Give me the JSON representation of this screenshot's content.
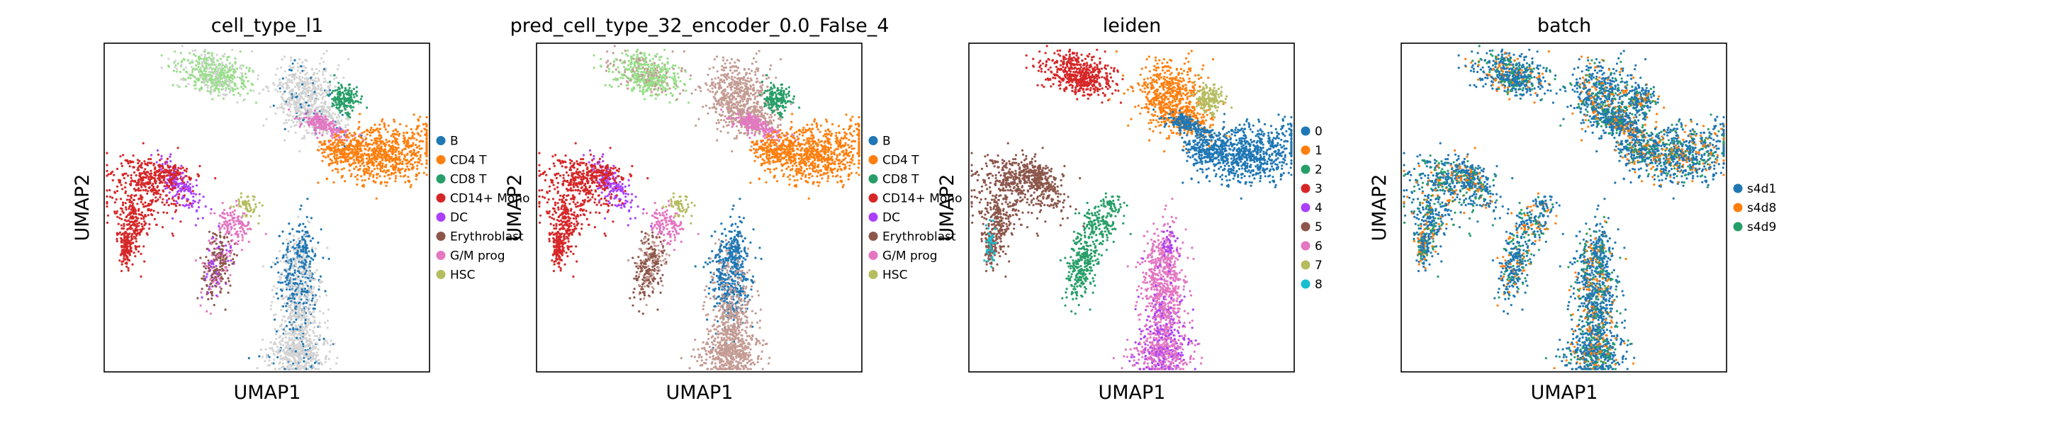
{
  "figure": {
    "background": "#ffffff"
  },
  "chart_data": [
    {
      "type": "scatter",
      "title": "cell_type_l1",
      "xlabel": "UMAP1",
      "ylabel": "UMAP2",
      "grid": false,
      "legend": "right",
      "unassigned_color": "#d3d3d3",
      "categories": [
        "B",
        "CD4 T",
        "CD8 T",
        "CD14+ Mono",
        "DC",
        "Erythroblast",
        "G/M prog",
        "HSC"
      ],
      "colors": [
        "#1f77b4",
        "#ff7f0e",
        "#279e68",
        "#d62728",
        "#aa40fc",
        "#8c564b",
        "#e377c2",
        "#b5bd61"
      ]
    },
    {
      "type": "scatter",
      "title": "pred_cell_type_32_encoder_0.0_False_4",
      "xlabel": "UMAP1",
      "ylabel": "UMAP2",
      "grid": false,
      "legend": "right",
      "categories": [
        "B",
        "CD4 T",
        "CD8 T",
        "CD14+ Mono",
        "DC",
        "Erythroblast",
        "G/M prog",
        "HSC"
      ],
      "colors": [
        "#1f77b4",
        "#ff7f0e",
        "#279e68",
        "#d62728",
        "#aa40fc",
        "#8c564b",
        "#e377c2",
        "#b5bd61"
      ]
    },
    {
      "type": "scatter",
      "title": "leiden",
      "xlabel": "UMAP1",
      "ylabel": "UMAP2",
      "grid": false,
      "legend": "right",
      "categories": [
        "0",
        "1",
        "2",
        "3",
        "4",
        "5",
        "6",
        "7",
        "8"
      ],
      "colors": [
        "#1f77b4",
        "#ff7f0e",
        "#279e68",
        "#d62728",
        "#aa40fc",
        "#8c564b",
        "#e377c2",
        "#b5bd61",
        "#17becf"
      ]
    },
    {
      "type": "scatter",
      "title": "batch",
      "xlabel": "UMAP1",
      "ylabel": "UMAP2",
      "grid": false,
      "legend": "right",
      "categories": [
        "s4d1",
        "s4d8",
        "s4d9"
      ],
      "colors": [
        "#1f77b4",
        "#ff7f0e",
        "#279e68"
      ]
    }
  ]
}
